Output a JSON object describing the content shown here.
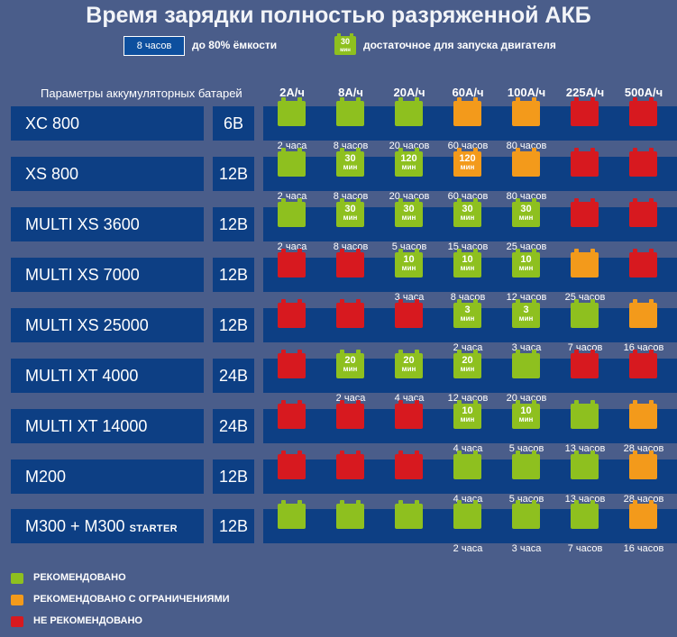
{
  "title": "Время зарядки полностью разряженной АКБ",
  "legend_top": {
    "time_example": "8 часов",
    "time_text": "до 80% ёмкости",
    "mini_value": "30",
    "mini_unit": "мин",
    "mini_text": "достаточное для запуска двигателя"
  },
  "params_label": "Параметры аккумуляторных батарей",
  "columns": [
    "2А/ч",
    "8А/ч",
    "20А/ч",
    "60А/ч",
    "100А/ч",
    "225А/ч",
    "500А/ч"
  ],
  "rows": [
    {
      "name": "XC 800",
      "name_small": "",
      "voltage": "6В",
      "cells": [
        {
          "color": "green",
          "value": "",
          "unit": "",
          "time": "2 часа"
        },
        {
          "color": "green",
          "value": "",
          "unit": "",
          "time": "8 часов"
        },
        {
          "color": "green",
          "value": "",
          "unit": "",
          "time": "20 часов"
        },
        {
          "color": "orange",
          "value": "",
          "unit": "",
          "time": "60 часов"
        },
        {
          "color": "orange",
          "value": "",
          "unit": "",
          "time": "80 часов"
        },
        {
          "color": "red",
          "value": "",
          "unit": "",
          "time": ""
        },
        {
          "color": "red",
          "value": "",
          "unit": "",
          "time": ""
        }
      ]
    },
    {
      "name": "XS 800",
      "name_small": "",
      "voltage": "12В",
      "cells": [
        {
          "color": "green",
          "value": "",
          "unit": "",
          "time": "2 часа"
        },
        {
          "color": "green",
          "value": "30",
          "unit": "мин",
          "time": "8 часов"
        },
        {
          "color": "green",
          "value": "120",
          "unit": "мин",
          "time": "20 часов"
        },
        {
          "color": "orange",
          "value": "120",
          "unit": "мин",
          "time": "60 часов"
        },
        {
          "color": "orange",
          "value": "",
          "unit": "",
          "time": "80 часов"
        },
        {
          "color": "red",
          "value": "",
          "unit": "",
          "time": ""
        },
        {
          "color": "red",
          "value": "",
          "unit": "",
          "time": ""
        }
      ]
    },
    {
      "name": "MULTI XS 3600",
      "name_small": "",
      "voltage": "12В",
      "cells": [
        {
          "color": "green",
          "value": "",
          "unit": "",
          "time": "2 часа"
        },
        {
          "color": "green",
          "value": "30",
          "unit": "мин",
          "time": "8 часов"
        },
        {
          "color": "green",
          "value": "30",
          "unit": "мин",
          "time": "5 часов"
        },
        {
          "color": "green",
          "value": "30",
          "unit": "мин",
          "time": "15 часов"
        },
        {
          "color": "green",
          "value": "30",
          "unit": "мин",
          "time": "25 часов"
        },
        {
          "color": "red",
          "value": "",
          "unit": "",
          "time": ""
        },
        {
          "color": "red",
          "value": "",
          "unit": "",
          "time": ""
        }
      ]
    },
    {
      "name": "MULTI XS 7000",
      "name_small": "",
      "voltage": "12В",
      "cells": [
        {
          "color": "red",
          "value": "",
          "unit": "",
          "time": ""
        },
        {
          "color": "red",
          "value": "",
          "unit": "",
          "time": ""
        },
        {
          "color": "green",
          "value": "10",
          "unit": "мин",
          "time": "3 часа"
        },
        {
          "color": "green",
          "value": "10",
          "unit": "мин",
          "time": "8 часов"
        },
        {
          "color": "green",
          "value": "10",
          "unit": "мин",
          "time": "12 часов"
        },
        {
          "color": "orange",
          "value": "",
          "unit": "",
          "time": "25 часов"
        },
        {
          "color": "red",
          "value": "",
          "unit": "",
          "time": ""
        }
      ]
    },
    {
      "name": "MULTI XS 25000",
      "name_small": "",
      "voltage": "12В",
      "cells": [
        {
          "color": "red",
          "value": "",
          "unit": "",
          "time": ""
        },
        {
          "color": "red",
          "value": "",
          "unit": "",
          "time": ""
        },
        {
          "color": "red",
          "value": "",
          "unit": "",
          "time": ""
        },
        {
          "color": "green",
          "value": "3",
          "unit": "мин",
          "time": "2 часа"
        },
        {
          "color": "green",
          "value": "3",
          "unit": "мин",
          "time": "3 часа"
        },
        {
          "color": "green",
          "value": "",
          "unit": "",
          "time": "7 часов"
        },
        {
          "color": "orange",
          "value": "",
          "unit": "",
          "time": "16 часов"
        }
      ]
    },
    {
      "name": "MULTI XT 4000",
      "name_small": "",
      "voltage": "24В",
      "cells": [
        {
          "color": "red",
          "value": "",
          "unit": "",
          "time": ""
        },
        {
          "color": "green",
          "value": "20",
          "unit": "мин",
          "time": "2 часа"
        },
        {
          "color": "green",
          "value": "20",
          "unit": "мин",
          "time": "4 часа"
        },
        {
          "color": "green",
          "value": "20",
          "unit": "мин",
          "time": "12 часов"
        },
        {
          "color": "green",
          "value": "",
          "unit": "",
          "time": "20 часов"
        },
        {
          "color": "red",
          "value": "",
          "unit": "",
          "time": ""
        },
        {
          "color": "red",
          "value": "",
          "unit": "",
          "time": ""
        }
      ]
    },
    {
      "name": "MULTI XT 14000",
      "name_small": "",
      "voltage": "24В",
      "cells": [
        {
          "color": "red",
          "value": "",
          "unit": "",
          "time": ""
        },
        {
          "color": "red",
          "value": "",
          "unit": "",
          "time": ""
        },
        {
          "color": "red",
          "value": "",
          "unit": "",
          "time": ""
        },
        {
          "color": "green",
          "value": "10",
          "unit": "мин",
          "time": "4 часа"
        },
        {
          "color": "green",
          "value": "10",
          "unit": "мин",
          "time": "5 часов"
        },
        {
          "color": "green",
          "value": "",
          "unit": "",
          "time": "13 часов"
        },
        {
          "color": "orange",
          "value": "",
          "unit": "",
          "time": "28 часов"
        }
      ]
    },
    {
      "name": "M200",
      "name_small": "",
      "voltage": "12В",
      "cells": [
        {
          "color": "red",
          "value": "",
          "unit": "",
          "time": ""
        },
        {
          "color": "red",
          "value": "",
          "unit": "",
          "time": ""
        },
        {
          "color": "red",
          "value": "",
          "unit": "",
          "time": ""
        },
        {
          "color": "green",
          "value": "",
          "unit": "",
          "time": "4 часа"
        },
        {
          "color": "green",
          "value": "",
          "unit": "",
          "time": "5 часов"
        },
        {
          "color": "green",
          "value": "",
          "unit": "",
          "time": "13 часов"
        },
        {
          "color": "orange",
          "value": "",
          "unit": "",
          "time": "28 часов"
        }
      ]
    },
    {
      "name": "M300 + M300",
      "name_small": "STARTER",
      "voltage": "12В",
      "cells": [
        {
          "color": "green",
          "value": "",
          "unit": "",
          "time": ""
        },
        {
          "color": "green",
          "value": "",
          "unit": "",
          "time": ""
        },
        {
          "color": "green",
          "value": "",
          "unit": "",
          "time": ""
        },
        {
          "color": "green",
          "value": "",
          "unit": "",
          "time": "2 часа"
        },
        {
          "color": "green",
          "value": "",
          "unit": "",
          "time": "3 часа"
        },
        {
          "color": "green",
          "value": "",
          "unit": "",
          "time": "7 часов"
        },
        {
          "color": "orange",
          "value": "",
          "unit": "",
          "time": "16 часов"
        }
      ]
    }
  ],
  "legend": [
    {
      "color": "green",
      "label": "РЕКОМЕНДОВАНО"
    },
    {
      "color": "orange",
      "label": "РЕКОМЕНДОВАНО С ОГРАНИЧЕНИЯМИ"
    },
    {
      "color": "red",
      "label": "НЕ РЕКОМЕНДОВАНО"
    }
  ],
  "colors": {
    "green": "#8ec01f",
    "orange": "#f39a1b",
    "red": "#d7191f",
    "row_bg": "#0d3f84",
    "page_bg": "#4a5d8a"
  }
}
